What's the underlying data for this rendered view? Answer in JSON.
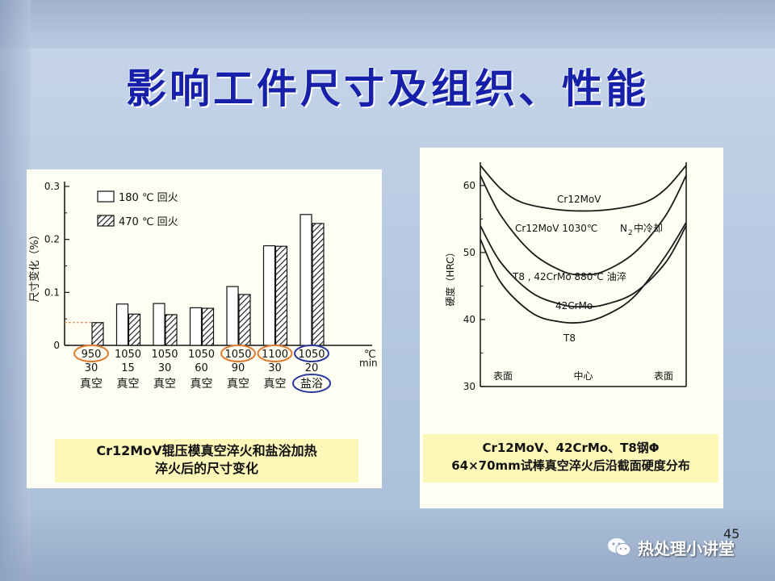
{
  "title": "影响工件尺寸及组织、性能",
  "page_number": "45",
  "watermark": {
    "text": "热处理小讲堂",
    "icon": "wechat-icon"
  },
  "colors": {
    "title": "#1620a8",
    "circle_orange": "#e07a2e",
    "circle_blue": "#2a3a9c",
    "caption_bg": "#fdf7b8"
  },
  "left_caption": {
    "line1": "Cr12MoV辊压模真空淬火和盐浴加热",
    "line2": "淬火后的尺寸变化"
  },
  "right_caption": {
    "line1": "Cr12MoV、42CrMo、T8钢Φ",
    "line2": "64×70mm试棒真空淬火后沿截面硬度分布"
  },
  "chart_data": [
    {
      "type": "bar",
      "ylabel": "尺寸变化（%）",
      "ylim": [
        0,
        0.3
      ],
      "yticks": [
        "0",
        "0.1",
        "0.2",
        "0.3"
      ],
      "unit_row1": "℃",
      "unit_row2": "min",
      "categories": [
        {
          "temp": "950",
          "time": "30",
          "medium": "真空",
          "circle": "orange"
        },
        {
          "temp": "1050",
          "time": "15",
          "medium": "真空",
          "circle": ""
        },
        {
          "temp": "1050",
          "time": "30",
          "medium": "真空",
          "circle": ""
        },
        {
          "temp": "1050",
          "time": "60",
          "medium": "真空",
          "circle": ""
        },
        {
          "temp": "1050",
          "time": "90",
          "medium": "真空",
          "circle": "orange"
        },
        {
          "temp": "1100",
          "time": "30",
          "medium": "真空",
          "circle": "orange"
        },
        {
          "temp": "1050",
          "time": "20",
          "medium": "盐浴",
          "circle": "blue"
        }
      ],
      "series": [
        {
          "name": "180 ℃ 回火",
          "pattern": "solid",
          "values": [
            0.0,
            0.078,
            0.079,
            0.071,
            0.111,
            0.188,
            0.247
          ]
        },
        {
          "name": "470 ℃ 回火",
          "pattern": "hatched",
          "values": [
            0.043,
            0.059,
            0.058,
            0.07,
            0.096,
            0.187,
            0.23
          ]
        }
      ]
    },
    {
      "type": "line",
      "ylabel": "硬度（HRC）",
      "ylim": [
        30,
        63
      ],
      "yticks": [
        "30",
        "40",
        "50",
        "60"
      ],
      "xlabels": {
        "left": "表面",
        "center": "中心",
        "right": "表面"
      },
      "series": [
        {
          "name": "Cr12MoV",
          "points": [
            [
              0,
              63.0
            ],
            [
              0.1,
              59.5
            ],
            [
              0.2,
              57.5
            ],
            [
              0.35,
              56.5
            ],
            [
              0.5,
              56.2
            ],
            [
              0.65,
              56.5
            ],
            [
              0.8,
              57.5
            ],
            [
              0.9,
              59.5
            ],
            [
              1,
              63.0
            ]
          ]
        },
        {
          "name": "Cr12MoV 1030℃ N₂中冷却",
          "points": [
            [
              0,
              61.5
            ],
            [
              0.1,
              55.5
            ],
            [
              0.25,
              50.0
            ],
            [
              0.4,
              47.2
            ],
            [
              0.5,
              46.7
            ],
            [
              0.6,
              47.2
            ],
            [
              0.75,
              50.0
            ],
            [
              0.9,
              55.5
            ],
            [
              1,
              61.5
            ]
          ]
        },
        {
          "name": "42CrMo",
          "points": [
            [
              0,
              54.0
            ],
            [
              0.1,
              48.5
            ],
            [
              0.25,
              44.0
            ],
            [
              0.4,
              42.2
            ],
            [
              0.5,
              41.9
            ],
            [
              0.6,
              42.2
            ],
            [
              0.75,
              44.0
            ],
            [
              0.9,
              48.5
            ],
            [
              1,
              54.0
            ]
          ]
        },
        {
          "name": "T8，42CrMo 880℃ 油淬",
          "points": [
            [
              0,
              52.0
            ],
            [
              0.1,
              45.5
            ],
            [
              0.25,
              41.0
            ],
            [
              0.38,
              39.7
            ],
            [
              0.5,
              39.6
            ],
            [
              0.62,
              40.8
            ],
            [
              0.75,
              43.5
            ],
            [
              0.9,
              49.5
            ],
            [
              1,
              54.5
            ]
          ]
        }
      ],
      "labels": [
        "Cr12MoV",
        "Cr12MoV 1030℃",
        "N",
        "2",
        "中冷却",
        "T8 , 42CrMo 880℃ 油淬",
        "42CrMo",
        "T8"
      ]
    }
  ]
}
